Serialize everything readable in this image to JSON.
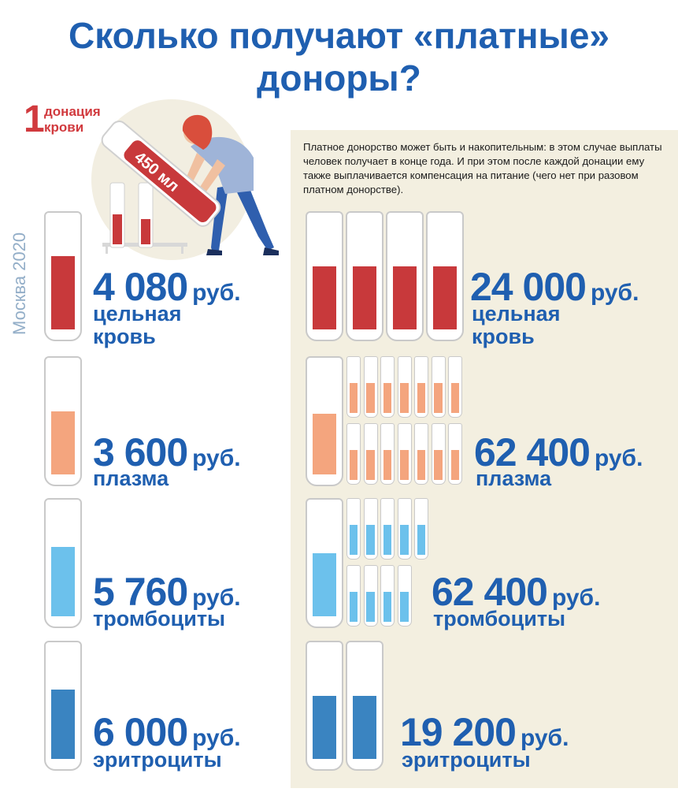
{
  "title": {
    "line1": "Сколько получают «платные»",
    "line2": "доноры?"
  },
  "side_label": "Москва 2020",
  "dose_badge": {
    "number": "1",
    "text_line1": "донация",
    "text_line2": "крови",
    "volume": "450 мл"
  },
  "note": "Платное донорство может быть и накопительным: в этом случае выплаты человек получает в конце года. И при этом после каждой донации ему также выплачивается компенсация на питание (чего нет при разовом платном донорстве).",
  "currency": "руб.",
  "colors": {
    "title": "#1f5fb0",
    "panel": "#f3efe0",
    "whole_blood": "#c8393b",
    "plasma": "#f4a57e",
    "platelets": "#6cc1ec",
    "erythrocytes": "#3a84c1"
  },
  "single": [
    {
      "amount": "4 080",
      "label_line1": "цельная",
      "label_line2": "кровь",
      "fill_level": 0.58
    },
    {
      "amount": "3 600",
      "label_line1": "плазма",
      "label_line2": "",
      "fill_level": 0.5
    },
    {
      "amount": "5 760",
      "label_line1": "тромбоциты",
      "label_line2": "",
      "fill_level": 0.55
    },
    {
      "amount": "6 000",
      "label_line1": "эритроциты",
      "label_line2": "",
      "fill_level": 0.55
    }
  ],
  "cumulative": [
    {
      "amount": "24 000",
      "label_line1": "цельная",
      "label_line2": "кровь",
      "donations": 4
    },
    {
      "amount": "62 400",
      "label_line1": "плазма",
      "label_line2": "",
      "donations": 14
    },
    {
      "amount": "62 400",
      "label_line1": "тромбоциты",
      "label_line2": "",
      "donations": 9
    },
    {
      "amount": "19 200",
      "label_line1": "эритроциты",
      "label_line2": "",
      "donations": 2
    }
  ]
}
